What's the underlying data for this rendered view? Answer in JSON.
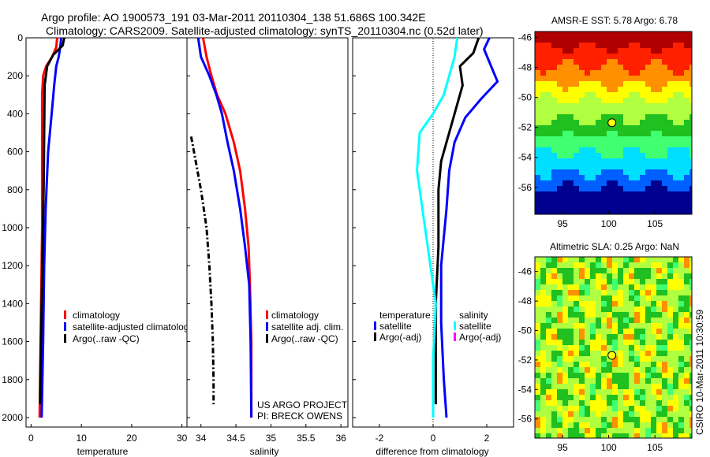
{
  "header": {
    "line1": "Argo profile: AO 1900573_191 03-Mar-2011 20110304_138 51.686S 100.342E",
    "line2": "Climatology: CARS2009. Satellite-adjusted climatology: synTS_20110304.nc (0.52d later)"
  },
  "colors": {
    "climatology": "#ff0000",
    "satellite": "#0000ff",
    "argo": "#000000",
    "sal_satellite": "#00ffff",
    "sal_argo": "#ff00ff"
  },
  "chart_data": [
    {
      "type": "line",
      "panel": "temperature",
      "xlabel": "temperature",
      "ylabel": "",
      "xlim": [
        -1,
        31
      ],
      "ylim": [
        2050,
        0
      ],
      "xticks": [
        0,
        10,
        20,
        30
      ],
      "yticks": [
        0,
        200,
        400,
        600,
        800,
        1000,
        1200,
        1400,
        1600,
        1800,
        2000
      ],
      "legend": [
        "climatology",
        "satellite-adjusted climatolog",
        "Argo(..raw -QC)"
      ],
      "series": [
        {
          "name": "climatology",
          "color": "#ff0000",
          "linestyle": "solid",
          "points": [
            [
              5.2,
              0
            ],
            [
              5.0,
              50
            ],
            [
              4.2,
              100
            ],
            [
              3.0,
              150
            ],
            [
              2.4,
              200
            ],
            [
              2.2,
              300
            ],
            [
              2.2,
              600
            ],
            [
              2.2,
              1000
            ],
            [
              2.0,
              1400
            ],
            [
              1.8,
              1800
            ],
            [
              1.7,
              2000
            ]
          ]
        },
        {
          "name": "satellite-adjusted climatolog",
          "color": "#0000ff",
          "linestyle": "solid",
          "points": [
            [
              6.0,
              0
            ],
            [
              5.8,
              50
            ],
            [
              5.5,
              100
            ],
            [
              5.0,
              150
            ],
            [
              4.6,
              250
            ],
            [
              4.1,
              400
            ],
            [
              3.4,
              600
            ],
            [
              2.9,
              900
            ],
            [
              2.6,
              1200
            ],
            [
              2.4,
              1600
            ],
            [
              2.1,
              2000
            ]
          ]
        },
        {
          "name": "Argo(..raw -QC)",
          "color": "#000000",
          "linestyle": "solid",
          "points": [
            [
              6.6,
              0
            ],
            [
              6.3,
              40
            ],
            [
              4.4,
              90
            ],
            [
              3.2,
              150
            ],
            [
              2.7,
              250
            ],
            [
              2.6,
              500
            ],
            [
              2.5,
              800
            ],
            [
              2.3,
              1100
            ],
            [
              2.1,
              1400
            ],
            [
              1.9,
              1700
            ],
            [
              1.8,
              1930
            ]
          ]
        }
      ]
    },
    {
      "type": "line",
      "panel": "salinity",
      "xlabel": "salinity",
      "ylabel": "",
      "xlim": [
        33.8,
        36.1
      ],
      "ylim": [
        2050,
        0
      ],
      "xticks": [
        34,
        34.5,
        35,
        35.5,
        36
      ],
      "legend": [
        "climatology",
        "satellite adj. clim.",
        "Argo(..raw -QC)"
      ],
      "annotations": [
        "US ARGO PROJECT",
        "PI: BRECK OWENS"
      ],
      "series": [
        {
          "name": "climatology",
          "color": "#ff0000",
          "linestyle": "solid",
          "points": [
            [
              34.03,
              0
            ],
            [
              34.08,
              100
            ],
            [
              34.15,
              200
            ],
            [
              34.23,
              300
            ],
            [
              34.35,
              400
            ],
            [
              34.47,
              550
            ],
            [
              34.56,
              700
            ],
            [
              34.63,
              900
            ],
            [
              34.68,
              1100
            ],
            [
              34.7,
              1300
            ],
            [
              34.72,
              1600
            ],
            [
              34.72,
              2000
            ]
          ]
        },
        {
          "name": "satellite adj. clim.",
          "color": "#0000ff",
          "linestyle": "solid",
          "points": [
            [
              33.96,
              0
            ],
            [
              34.0,
              100
            ],
            [
              34.12,
              200
            ],
            [
              34.22,
              300
            ],
            [
              34.3,
              400
            ],
            [
              34.38,
              550
            ],
            [
              34.47,
              700
            ],
            [
              34.56,
              900
            ],
            [
              34.63,
              1100
            ],
            [
              34.69,
              1300
            ],
            [
              34.71,
              1600
            ],
            [
              34.72,
              2000
            ]
          ]
        },
        {
          "name": "Argo(..raw -QC)",
          "color": "#000000",
          "linestyle": "dashdot",
          "points": [
            [
              33.86,
              520
            ],
            [
              33.9,
              600
            ],
            [
              33.95,
              700
            ],
            [
              34.0,
              800
            ],
            [
              34.04,
              900
            ],
            [
              34.08,
              1000
            ],
            [
              34.12,
              1200
            ],
            [
              34.15,
              1400
            ],
            [
              34.17,
              1600
            ],
            [
              34.18,
              1800
            ],
            [
              34.18,
              1930
            ]
          ]
        }
      ]
    },
    {
      "type": "line",
      "panel": "difference",
      "xlabel": "difference from climatology",
      "ylabel": "",
      "xlim": [
        -3,
        3
      ],
      "ylim": [
        2050,
        0
      ],
      "xticks": [
        -2,
        0,
        2
      ],
      "legend_titles": [
        "temperature",
        "salinity"
      ],
      "legend": [
        "satellite",
        "Argo(-adj)",
        "satellite",
        "Argo(-adj)"
      ],
      "series": [
        {
          "name": "temperature satellite",
          "color": "#0000ff",
          "linestyle": "solid",
          "points": [
            [
              2.1,
              0
            ],
            [
              1.9,
              60
            ],
            [
              2.4,
              230
            ],
            [
              1.8,
              320
            ],
            [
              1.2,
              420
            ],
            [
              0.8,
              550
            ],
            [
              0.6,
              700
            ],
            [
              0.5,
              900
            ],
            [
              0.3,
              1200
            ],
            [
              0.3,
              1500
            ],
            [
              0.4,
              1800
            ],
            [
              0.5,
              2000
            ]
          ]
        },
        {
          "name": "temperature Argo(-adj)",
          "color": "#000000",
          "linestyle": "solid",
          "points": [
            [
              1.7,
              0
            ],
            [
              1.5,
              80
            ],
            [
              1.0,
              150
            ],
            [
              1.1,
              250
            ],
            [
              0.9,
              350
            ],
            [
              0.6,
              500
            ],
            [
              0.3,
              650
            ],
            [
              0.2,
              800
            ],
            [
              0.2,
              1100
            ],
            [
              0.1,
              1400
            ],
            [
              0.1,
              1700
            ],
            [
              0.1,
              1930
            ]
          ]
        },
        {
          "name": "salinity satellite",
          "color": "#00ffff",
          "linestyle": "solid",
          "points": [
            [
              0.9,
              0
            ],
            [
              0.8,
              100
            ],
            [
              0.6,
              200
            ],
            [
              0.4,
              300
            ],
            [
              0.0,
              400
            ],
            [
              -0.5,
              500
            ],
            [
              -0.6,
              700
            ],
            [
              -0.4,
              900
            ],
            [
              -0.1,
              1200
            ],
            [
              0.1,
              1400
            ],
            [
              0.0,
              1700
            ],
            [
              0.0,
              2000
            ]
          ]
        },
        {
          "name": "salinity Argo(-adj)",
          "color": "#ff00ff",
          "linestyle": "solid",
          "points": []
        }
      ]
    },
    {
      "type": "heatmap",
      "panel": "sst-map",
      "title": "AMSR-E SST: 5.78 Argo: 6.78",
      "xlim": [
        92,
        109
      ],
      "ylim": [
        -57.8,
        -45.6
      ],
      "xticks": [
        95,
        100,
        105
      ],
      "yticks": [
        -46,
        -48,
        -50,
        -52,
        -54,
        -56
      ],
      "marker": {
        "lon": 100.342,
        "lat": -51.686
      },
      "colormap": [
        "#00008f",
        "#0060ff",
        "#00dfff",
        "#40ff70",
        "#20c020",
        "#b0ff40",
        "#ffff00",
        "#ff9000",
        "#ff2000",
        "#b00000"
      ]
    },
    {
      "type": "heatmap",
      "panel": "sla-map",
      "title": "Altimetric SLA: 0.25 Argo: NaN",
      "xlim": [
        92,
        109
      ],
      "ylim": [
        -57.3,
        -45
      ],
      "xticks": [
        95,
        100,
        105
      ],
      "yticks": [
        -46,
        -48,
        -50,
        -52,
        -54,
        -56
      ],
      "marker": {
        "lon": 100.342,
        "lat": -51.686
      },
      "side_label": "CSIRO 10-Mar-2011 10:30:59"
    }
  ]
}
